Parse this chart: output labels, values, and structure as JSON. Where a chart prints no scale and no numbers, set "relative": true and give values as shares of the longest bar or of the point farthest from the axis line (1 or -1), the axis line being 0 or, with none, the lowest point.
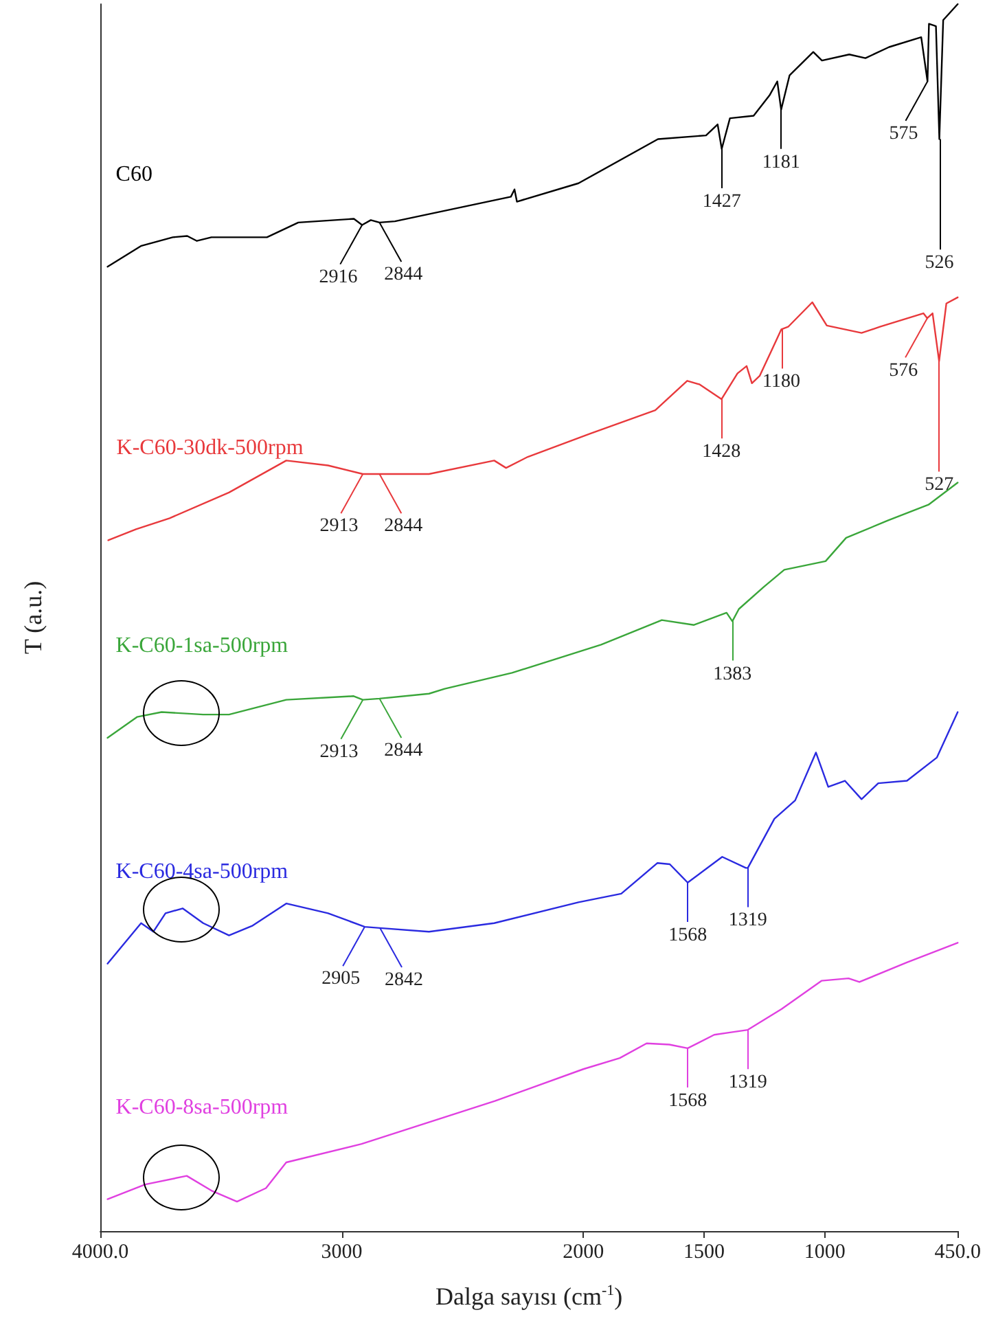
{
  "chart_data": {
    "type": "line",
    "relative": true,
    "xlabel": "Dalga sayısı (cm$^{-1}$)",
    "ylabel": "T (a.u.)",
    "xlim": [
      4000,
      450
    ],
    "xticks": [
      {
        "value": 4000,
        "label": "4000.0"
      },
      3000,
      2000,
      1500,
      1000,
      {
        "value": 450,
        "label": "450.0"
      }
    ],
    "legend": false,
    "grid": false,
    "marker": "none",
    "line_style": "solid",
    "series": [
      {
        "name": "C60",
        "color": "#000000",
        "x": [
          3970,
          3830,
          3700,
          3640,
          3600,
          3540,
          3310,
          3180,
          2950,
          2916,
          2880,
          2844,
          2780,
          2300,
          2285,
          2275,
          2020,
          1691,
          1492,
          1444,
          1427,
          1393,
          1295,
          1228,
          1197,
          1181,
          1146,
          1048,
          1012,
          899,
          832,
          734,
          601,
          575,
          569,
          540,
          526,
          510,
          450
        ],
        "values": [
          0.786,
          0.803,
          0.81,
          0.811,
          0.807,
          0.81,
          0.81,
          0.822,
          0.825,
          0.82,
          0.824,
          0.822,
          0.823,
          0.843,
          0.849,
          0.839,
          0.854,
          0.89,
          0.893,
          0.902,
          0.882,
          0.907,
          0.909,
          0.926,
          0.937,
          0.914,
          0.942,
          0.961,
          0.954,
          0.959,
          0.956,
          0.965,
          0.973,
          0.937,
          0.984,
          0.982,
          0.89,
          0.987,
          1
        ]
      },
      {
        "name": "K-C60-30dk-500rpm",
        "color": "#e8393c",
        "x": [
          3967,
          3852,
          3713,
          3467,
          3230,
          3057,
          2913,
          2844,
          2639,
          2369,
          2320,
          2230,
          1971,
          1702,
          1570,
          1518,
          1428,
          1362,
          1324,
          1302,
          1270,
          1201,
          1180,
          1152,
          1052,
          992,
          848,
          772,
          592,
          576,
          554,
          527,
          497,
          450
        ],
        "values": [
          0.563,
          0.572,
          0.581,
          0.602,
          0.628,
          0.624,
          0.617,
          0.617,
          0.617,
          0.628,
          0.622,
          0.631,
          0.65,
          0.669,
          0.693,
          0.69,
          0.678,
          0.699,
          0.705,
          0.691,
          0.697,
          0.726,
          0.735,
          0.737,
          0.757,
          0.738,
          0.732,
          0.737,
          0.748,
          0.744,
          0.748,
          0.709,
          0.756,
          0.761
        ]
      },
      {
        "name": "K-C60-1sa-500rpm",
        "color": "#3aa63a",
        "x": [
          3970,
          3848,
          3746,
          3574,
          3467,
          3230,
          2951,
          2913,
          2844,
          2639,
          2574,
          2295,
          1926,
          1675,
          1542,
          1407,
          1383,
          1356,
          1253,
          1168,
          997,
          912,
          741,
          571,
          450
        ],
        "values": [
          0.402,
          0.419,
          0.423,
          0.421,
          0.421,
          0.433,
          0.436,
          0.433,
          0.434,
          0.438,
          0.442,
          0.455,
          0.478,
          0.498,
          0.494,
          0.504,
          0.497,
          0.507,
          0.525,
          0.539,
          0.546,
          0.565,
          0.579,
          0.592,
          0.61
        ]
      },
      {
        "name": "K-C60-4sa-500rpm",
        "color": "#2a2ae0",
        "x": [
          3970,
          3831,
          3780,
          3730,
          3659,
          3574,
          3467,
          3369,
          3230,
          3057,
          2905,
          2842,
          2639,
          2369,
          2020,
          1843,
          1693,
          1642,
          1568,
          1425,
          1327,
          1319,
          1209,
          1123,
          1037,
          986,
          917,
          848,
          779,
          660,
          536,
          450
        ],
        "values": [
          0.218,
          0.251,
          0.244,
          0.259,
          0.263,
          0.251,
          0.241,
          0.249,
          0.267,
          0.259,
          0.248,
          0.247,
          0.244,
          0.251,
          0.268,
          0.275,
          0.3,
          0.299,
          0.284,
          0.305,
          0.296,
          0.296,
          0.336,
          0.351,
          0.39,
          0.362,
          0.367,
          0.352,
          0.365,
          0.367,
          0.386,
          0.423
        ]
      },
      {
        "name": "K-C60-8sa-500rpm",
        "color": "#e040e0",
        "x": [
          3970,
          3814,
          3642,
          3540,
          3434,
          3314,
          3230,
          2918,
          2366,
          2000,
          1849,
          1738,
          1644,
          1568,
          1458,
          1388,
          1319,
          1179,
          1014,
          902,
          857,
          660,
          450
        ],
        "values": [
          0.026,
          0.038,
          0.045,
          0.033,
          0.024,
          0.035,
          0.056,
          0.071,
          0.106,
          0.132,
          0.141,
          0.153,
          0.152,
          0.149,
          0.16,
          0.162,
          0.164,
          0.181,
          0.204,
          0.206,
          0.203,
          0.219,
          0.235
        ]
      }
    ],
    "annotations": [
      {
        "text": "2916",
        "x": 2916,
        "y": 0.82
      },
      {
        "text": "2844",
        "x": 2844,
        "y": 0.822
      },
      {
        "text": "1427",
        "x": 1427,
        "y": 0.882
      },
      {
        "text": "1181",
        "x": 1181,
        "y": 0.914
      },
      {
        "text": "575",
        "x": 575,
        "y": 0.937
      },
      {
        "text": "526",
        "x": 526,
        "y": 0.89
      },
      {
        "text": "2913",
        "x": 2913,
        "y": 0.617
      },
      {
        "text": "2844",
        "x": 2844,
        "y": 0.617
      },
      {
        "text": "1428",
        "x": 1428,
        "y": 0.678
      },
      {
        "text": "1180",
        "x": 1180,
        "y": 0.735
      },
      {
        "text": "576",
        "x": 576,
        "y": 0.744
      },
      {
        "text": "527",
        "x": 527,
        "y": 0.709
      },
      {
        "text": "2913",
        "x": 2913,
        "y": 0.433
      },
      {
        "text": "2844",
        "x": 2844,
        "y": 0.434
      },
      {
        "text": "1383",
        "x": 1383,
        "y": 0.497
      },
      {
        "text": "2905",
        "x": 2905,
        "y": 0.248
      },
      {
        "text": "2842",
        "x": 2842,
        "y": 0.247
      },
      {
        "text": "1568",
        "x": 1568,
        "y": 0.284
      },
      {
        "text": "1319",
        "x": 1319,
        "y": 0.296
      },
      {
        "text": "1568",
        "x": 1568,
        "y": 0.149
      },
      {
        "text": "1319",
        "x": 1319,
        "y": 0.164
      }
    ]
  }
}
